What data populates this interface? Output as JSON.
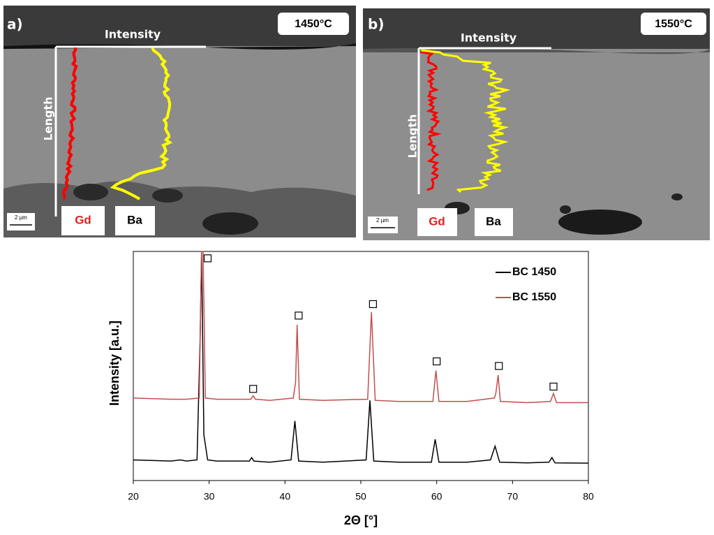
{
  "panels": [
    {
      "label": "a)",
      "temperature": "1450°C",
      "x_axis": "Intensity",
      "y_axis": "Length",
      "elements": [
        "Gd",
        "Ba"
      ],
      "scale": "2 µm"
    },
    {
      "label": "b)",
      "temperature": "1550°C",
      "x_axis": "Intensity",
      "y_axis": "Length",
      "elements": [
        "Gd",
        "Ba"
      ],
      "scale": "2 µm"
    }
  ],
  "chart_data": {
    "type": "line",
    "xlabel": "2Θ [°]",
    "ylabel": "Intensity [a.u.]",
    "xlim": [
      20,
      80
    ],
    "xticks": [
      20,
      30,
      40,
      50,
      60,
      70,
      80
    ],
    "ylim": [
      0,
      100
    ],
    "series": [
      {
        "name": "BC 1450",
        "color": "#000000",
        "x": [
          20,
          25,
          26.2,
          27,
          28.4,
          28.8,
          29,
          29.3,
          29.8,
          31,
          34,
          35.3,
          35.6,
          35.9,
          38,
          40.8,
          41.3,
          41.8,
          45,
          50.7,
          51.2,
          51.7,
          55,
          59.3,
          59.8,
          60.3,
          64,
          67.1,
          67.7,
          68.3,
          72,
          74.8,
          75.2,
          75.6,
          80
        ],
        "values": [
          9,
          8.5,
          9,
          8.5,
          9,
          60,
          100,
          20,
          9,
          8.5,
          8.5,
          8.5,
          10,
          8.5,
          8,
          9,
          26,
          8.5,
          8,
          9,
          35,
          8.5,
          8,
          8,
          18,
          8,
          8,
          9,
          15,
          8,
          7.7,
          8,
          10,
          7.7,
          7.6
        ]
      },
      {
        "name": "BC 1550",
        "color": "#c0504d",
        "x": [
          20,
          25,
          27,
          28.7,
          29,
          29.2,
          29.5,
          31,
          34,
          35.5,
          35.8,
          36.1,
          38,
          41.1,
          41.4,
          41.6,
          41.9,
          45,
          50.9,
          51.4,
          51.9,
          55,
          59.5,
          59.9,
          60.3,
          64,
          67.6,
          67.8,
          68.1,
          68.4,
          72,
          75,
          75.4,
          75.8,
          80
        ],
        "values": [
          36,
          35.5,
          35.5,
          36,
          100,
          100,
          36,
          35.5,
          35.5,
          35.5,
          37,
          35.5,
          35,
          36,
          43,
          68,
          35.5,
          35,
          35.5,
          73.5,
          35,
          34.5,
          34.5,
          48,
          34.5,
          34.5,
          36,
          38,
          46,
          34.5,
          34,
          34.5,
          38,
          34,
          34
        ]
      }
    ],
    "peak_markers": {
      "x": [
        29.8,
        35.8,
        41.8,
        51.6,
        60,
        68.2,
        75.4
      ],
      "y": [
        97,
        40,
        72,
        77,
        52,
        50,
        41
      ]
    }
  }
}
